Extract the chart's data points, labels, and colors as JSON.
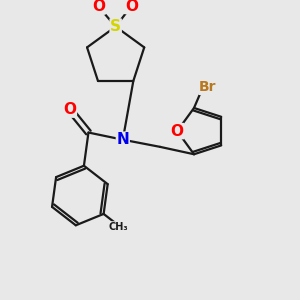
{
  "bg_color": "#e8e8e8",
  "bond_color": "#1a1a1a",
  "S_color": "#d4d400",
  "O_color": "#ff0000",
  "N_color": "#0000ee",
  "Br_color": "#b87820",
  "line_width": 1.6,
  "figsize": [
    3.0,
    3.0
  ],
  "dpi": 100,
  "xlim": [
    0,
    10
  ],
  "ylim": [
    0,
    10
  ]
}
